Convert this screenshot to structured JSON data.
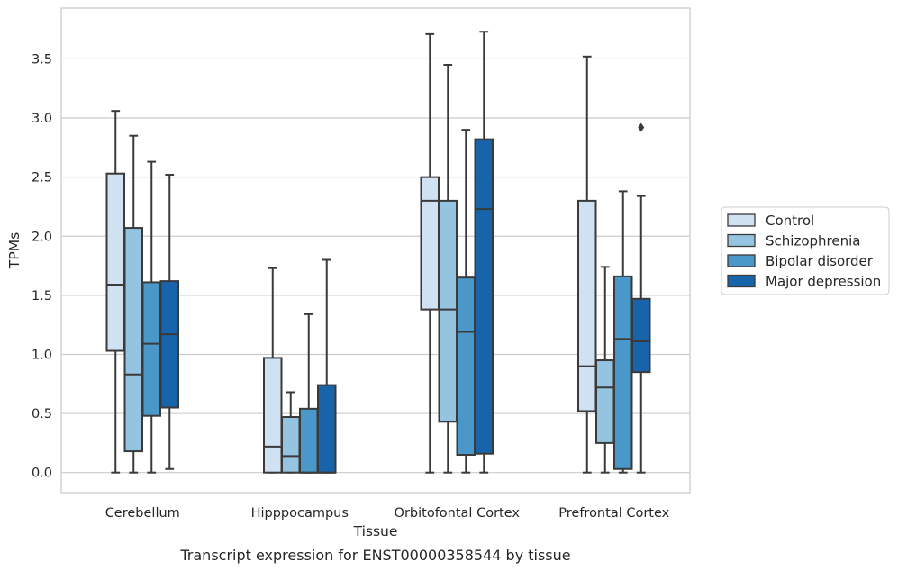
{
  "caption": "Transcript expression for ENST00000358544 by tissue",
  "chart_data": {
    "type": "box",
    "xlabel": "Tissue",
    "ylabel": "TPMs",
    "ylim": [
      -0.17,
      3.93
    ],
    "yticks": [
      0.0,
      0.5,
      1.0,
      1.5,
      2.0,
      2.5,
      3.0,
      3.5
    ],
    "ytick_labels": [
      "0.0",
      "0.5",
      "1.0",
      "1.5",
      "2.0",
      "2.5",
      "3.0",
      "3.5"
    ],
    "grid": "horizontal",
    "legend_position": "right",
    "categories": [
      "Cerebellum",
      "Hipppocampus",
      "Orbitofontal Cortex",
      "Prefrontal Cortex"
    ],
    "series": [
      {
        "name": "Control",
        "color": "#d0e1f2",
        "boxes": [
          {
            "whislo": 0.0,
            "q1": 1.03,
            "med": 1.59,
            "q3": 2.53,
            "whishi": 3.06,
            "fliers": []
          },
          {
            "whislo": 0.0,
            "q1": 0.0,
            "med": 0.22,
            "q3": 0.97,
            "whishi": 1.73,
            "fliers": []
          },
          {
            "whislo": 0.0,
            "q1": 1.38,
            "med": 2.3,
            "q3": 2.5,
            "whishi": 3.71,
            "fliers": []
          },
          {
            "whislo": 0.0,
            "q1": 0.52,
            "med": 0.9,
            "q3": 2.3,
            "whishi": 3.52,
            "fliers": []
          }
        ]
      },
      {
        "name": "Schizophrenia",
        "color": "#94c4df",
        "boxes": [
          {
            "whislo": 0.0,
            "q1": 0.18,
            "med": 0.83,
            "q3": 2.07,
            "whishi": 2.85,
            "fliers": []
          },
          {
            "whislo": 0.0,
            "q1": 0.0,
            "med": 0.14,
            "q3": 0.47,
            "whishi": 0.68,
            "fliers": []
          },
          {
            "whislo": 0.0,
            "q1": 0.43,
            "med": 1.38,
            "q3": 2.3,
            "whishi": 3.45,
            "fliers": []
          },
          {
            "whislo": 0.0,
            "q1": 0.25,
            "med": 0.72,
            "q3": 0.95,
            "whishi": 1.74,
            "fliers": []
          }
        ]
      },
      {
        "name": "Bipolar disorder",
        "color": "#4a98c9",
        "boxes": [
          {
            "whislo": 0.0,
            "q1": 0.48,
            "med": 1.09,
            "q3": 1.61,
            "whishi": 2.63,
            "fliers": []
          },
          {
            "whislo": 0.0,
            "q1": 0.0,
            "med": 0.0,
            "q3": 0.54,
            "whishi": 1.34,
            "fliers": []
          },
          {
            "whislo": 0.0,
            "q1": 0.15,
            "med": 1.19,
            "q3": 1.65,
            "whishi": 2.9,
            "fliers": []
          },
          {
            "whislo": 0.0,
            "q1": 0.03,
            "med": 1.13,
            "q3": 1.66,
            "whishi": 2.38,
            "fliers": []
          }
        ]
      },
      {
        "name": "Major depression",
        "color": "#1764ab",
        "boxes": [
          {
            "whislo": 0.03,
            "q1": 0.55,
            "med": 1.17,
            "q3": 1.62,
            "whishi": 2.52,
            "fliers": []
          },
          {
            "whislo": 0.0,
            "q1": 0.0,
            "med": 0.0,
            "q3": 0.74,
            "whishi": 1.8,
            "fliers": []
          },
          {
            "whislo": 0.0,
            "q1": 0.16,
            "med": 2.23,
            "q3": 2.82,
            "whishi": 3.73,
            "fliers": []
          },
          {
            "whislo": 0.0,
            "q1": 0.85,
            "med": 1.11,
            "q3": 1.47,
            "whishi": 2.34,
            "fliers": [
              2.92
            ]
          }
        ]
      }
    ]
  }
}
